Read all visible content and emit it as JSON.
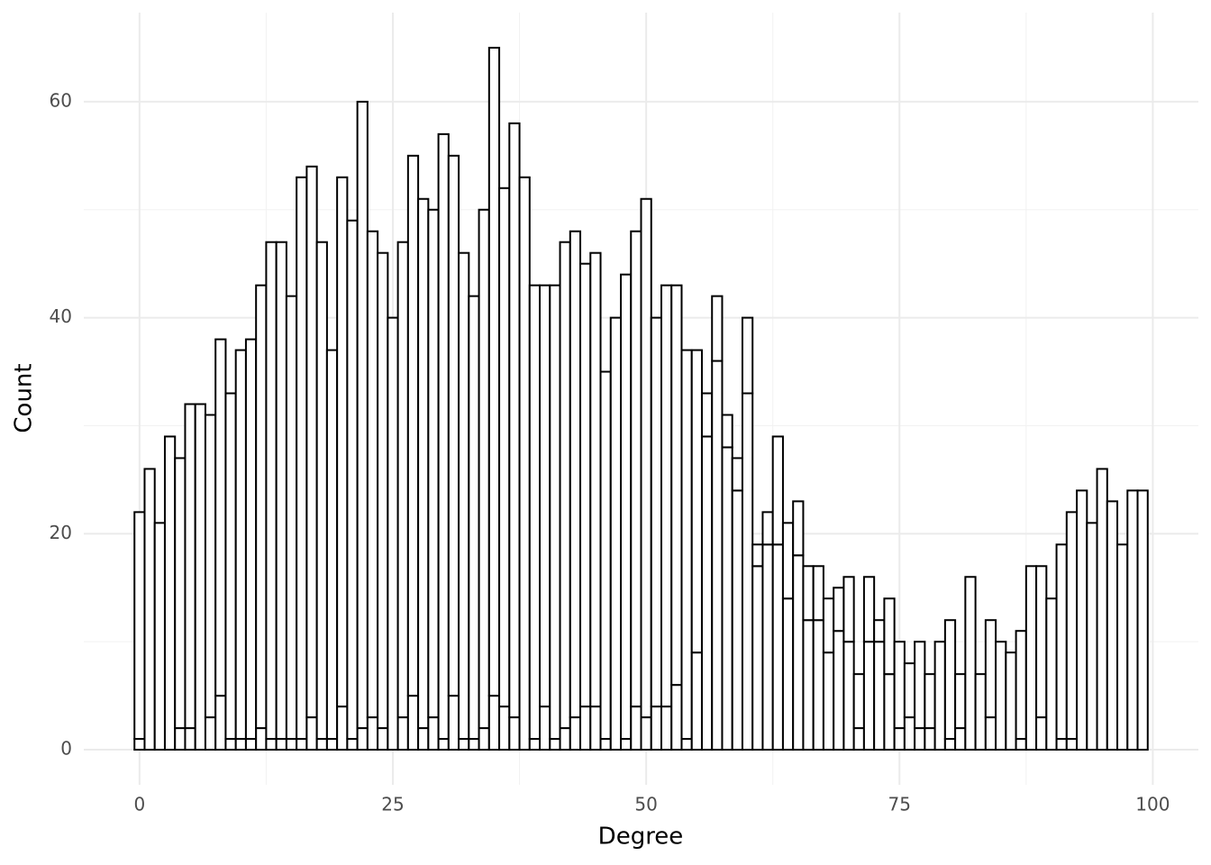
{
  "chart_data": {
    "type": "histogram",
    "x_label": "Degree",
    "y_label": "Count",
    "bins": [
      -0.5,
      0.5,
      1.5,
      2.5,
      3.5,
      4.5,
      5.5,
      6.5,
      7.5,
      8.5,
      9.5,
      10.5,
      11.5,
      12.5,
      13.5,
      14.5,
      15.5,
      16.5,
      17.5,
      18.5,
      19.5,
      20.5,
      21.5,
      22.5,
      23.5,
      24.5,
      25.5,
      26.5,
      27.5,
      28.5,
      29.5,
      30.5,
      31.5,
      32.5,
      33.5,
      34.5,
      35.5,
      36.5,
      37.5,
      38.5,
      39.5,
      40.5,
      41.5,
      42.5,
      43.5,
      44.5,
      45.5,
      46.5,
      47.5,
      48.5,
      49.5,
      50.5,
      51.5,
      52.5,
      53.5,
      54.5,
      55.5,
      56.5,
      57.5,
      58.5,
      59.5,
      60.5,
      61.5,
      62.5,
      63.5,
      64.5,
      65.5,
      66.5,
      67.5,
      68.5,
      69.5,
      70.5,
      71.5,
      72.5,
      73.5,
      74.5,
      75.5,
      76.5,
      77.5,
      78.5,
      79.5,
      80.5,
      81.5,
      82.5,
      83.5,
      84.5,
      85.5,
      86.5,
      87.5,
      88.5,
      89.5,
      90.5,
      91.5,
      92.5,
      93.5,
      94.5,
      95.5,
      96.5,
      97.5,
      98.5,
      99.5
    ],
    "series": [
      {
        "color": "#ffffff",
        "values": [
          1,
          0,
          0,
          0,
          2,
          2,
          0,
          3,
          5,
          1,
          1,
          1,
          2,
          1,
          1,
          1,
          1,
          3,
          1,
          1,
          4,
          1,
          2,
          3,
          2,
          0,
          3,
          5,
          2,
          3,
          1,
          5,
          1,
          1,
          2,
          5,
          4,
          3,
          0,
          1,
          4,
          1,
          2,
          3,
          4,
          4,
          1,
          0,
          1,
          4,
          3,
          4,
          4,
          6,
          1,
          9,
          29,
          36,
          28,
          24,
          33,
          17,
          19,
          19,
          14,
          18,
          12,
          12,
          9,
          11,
          10,
          2,
          10,
          10,
          7,
          2,
          3,
          2,
          2,
          0,
          1,
          2,
          0,
          0,
          3,
          0,
          0,
          1,
          0,
          3,
          0,
          1,
          1,
          0,
          0,
          0,
          0,
          0,
          0,
          0
        ]
      },
      {
        "color": "#ffffff",
        "values": [
          21,
          26,
          21,
          29,
          25,
          30,
          32,
          28,
          33,
          32,
          36,
          37,
          41,
          46,
          46,
          41,
          52,
          51,
          46,
          36,
          49,
          48,
          58,
          45,
          44,
          40,
          44,
          50,
          49,
          47,
          56,
          50,
          45,
          41,
          48,
          60,
          48,
          55,
          53,
          42,
          39,
          42,
          45,
          45,
          41,
          42,
          34,
          40,
          43,
          44,
          48,
          36,
          39,
          37,
          36,
          28,
          4,
          6,
          3,
          3,
          7,
          2,
          3,
          10,
          7,
          5,
          5,
          5,
          5,
          4,
          6,
          5,
          6,
          2,
          7,
          8,
          5,
          8,
          5,
          10,
          11,
          5,
          16,
          7,
          9,
          10,
          9,
          10,
          17,
          14,
          14,
          18,
          21,
          24,
          21,
          26,
          23,
          19,
          24,
          24
        ]
      }
    ],
    "stroke": "#000000",
    "xlim": [
      -5.5,
      104.5
    ],
    "xticks": [
      0,
      25,
      50,
      75,
      100
    ],
    "xminor": [
      12.5,
      37.5,
      62.5,
      87.5
    ],
    "ylim": [
      -3.25,
      68.25
    ],
    "yticks": [
      0,
      20,
      40,
      60
    ],
    "yminor": [
      10,
      30,
      50
    ],
    "grid": true
  }
}
